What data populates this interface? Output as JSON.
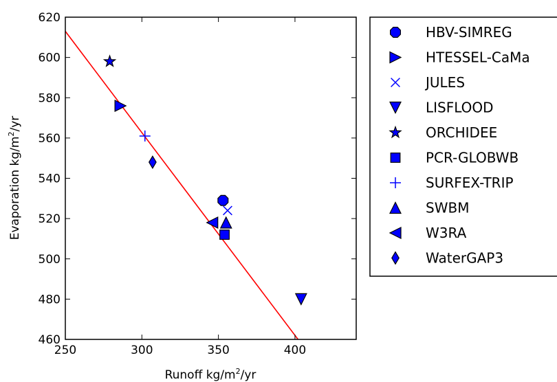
{
  "chart_data": {
    "type": "scatter",
    "title": "",
    "xlabel": {
      "main": "Runoff kg/m",
      "sup": "2",
      "tail": "/yr"
    },
    "ylabel": {
      "main": "Evaporation kg/m",
      "sup": "2",
      "tail": "/yr"
    },
    "xlim": [
      250,
      440
    ],
    "ylim": [
      460,
      620
    ],
    "xticks": [
      250,
      300,
      350,
      400
    ],
    "yticks": [
      460,
      480,
      500,
      520,
      540,
      560,
      580,
      600,
      620
    ],
    "grid": false,
    "legend_position": "outside-right",
    "marker_color": "#0000ff",
    "line_color": "#ff0000",
    "fit_line": {
      "x": [
        250,
        402
      ],
      "y": [
        613,
        460
      ]
    },
    "series": [
      {
        "name": "HBV-SIMREG",
        "marker": "octagon",
        "points": [
          [
            353,
            529
          ]
        ]
      },
      {
        "name": "HTESSEL-CaMa",
        "marker": "triangle-right",
        "points": [
          [
            286,
            576
          ]
        ]
      },
      {
        "name": "JULES",
        "marker": "x",
        "points": [
          [
            356,
            524
          ]
        ]
      },
      {
        "name": "LISFLOOD",
        "marker": "triangle-down",
        "points": [
          [
            404,
            480
          ]
        ]
      },
      {
        "name": "ORCHIDEE",
        "marker": "star",
        "points": [
          [
            279,
            598
          ]
        ]
      },
      {
        "name": "PCR-GLOBWB",
        "marker": "square",
        "points": [
          [
            354,
            512
          ]
        ]
      },
      {
        "name": "SURFEX-TRIP",
        "marker": "plus",
        "points": [
          [
            302,
            561
          ]
        ]
      },
      {
        "name": "SWBM",
        "marker": "triangle-up",
        "points": [
          [
            355,
            518
          ]
        ]
      },
      {
        "name": "W3RA",
        "marker": "triangle-left",
        "points": [
          [
            346,
            518
          ]
        ]
      },
      {
        "name": "WaterGAP3",
        "marker": "diamond",
        "points": [
          [
            307,
            548
          ]
        ]
      }
    ]
  }
}
